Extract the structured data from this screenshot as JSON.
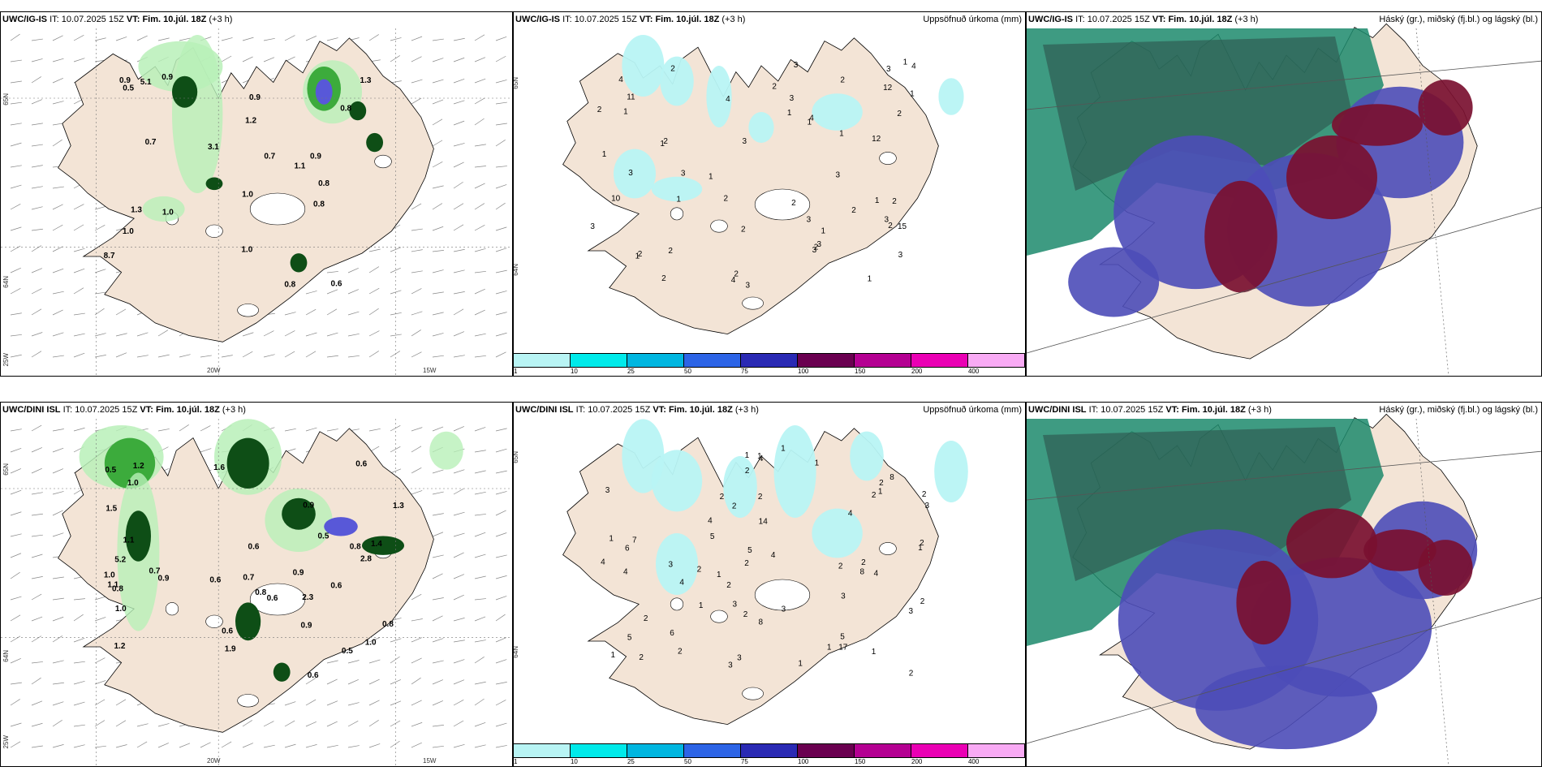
{
  "colors": {
    "land": "#f3e4d6",
    "ocean": "#ffffff",
    "precip_light": "#b8f0b8",
    "precip_mid": "#3cab3c",
    "precip_dark": "#0e4e16",
    "precip_heavy": "#5858d8",
    "accum_fill": "#b8f4f4",
    "cloud_high": "#7a1030",
    "cloud_mid": "#4d4db8",
    "cloud_low": "#1c8a6c",
    "cloud_low_dark": "#2f5c52"
  },
  "colorbar": {
    "labels": [
      "1",
      "10",
      "25",
      "50",
      "75",
      "100",
      "150",
      "200",
      "400"
    ],
    "colors": [
      "#b8f4f4",
      "#00eaea",
      "#00b6e0",
      "#2c64e6",
      "#2a2ab4",
      "#6a0050",
      "#b40092",
      "#ea00b4",
      "#f8aaf4"
    ]
  },
  "it_label": "IT:",
  "it_time": "10.07.2025 15Z",
  "vt_label": "VT: Fim. 10.júl. 18Z",
  "lead": "(+3 h)",
  "rows": [
    {
      "model": "UWC/IG-IS",
      "precip_title": "Uppsöfnuð úrkoma (mm)",
      "cloud_title": "Háský (gr.), miðský (fj.bl.) og lágský (bl.)",
      "axis_lat_1": "65N",
      "axis_lat_2": "64N",
      "axis_lon_1": "25W",
      "axis_lon_2": "20W",
      "axis_lon_3": "15W",
      "right_lat_1": "65N",
      "right_lat_2": "64N",
      "rate_labels": [
        "0.9",
        "1.0",
        "0.7",
        "1.2",
        "0.9",
        "1.3",
        "1.0",
        "0.8",
        "0.9",
        "0.8",
        "0.6",
        "0.8",
        "0.8",
        "1.0",
        "1.1",
        "0.7",
        "0.9",
        "0.5",
        "3.1",
        "1.0",
        "5.1",
        "8.7",
        "1.3"
      ],
      "accum_labels": [
        "1",
        "2",
        "3",
        "2",
        "1",
        "1",
        "4",
        "1",
        "3",
        "3",
        "2",
        "1",
        "2",
        "12",
        "11",
        "2",
        "15",
        "3",
        "10",
        "12",
        "3",
        "2",
        "4",
        "1",
        "1",
        "3",
        "2",
        "4",
        "4",
        "2",
        "2",
        "3",
        "1",
        "1",
        "3",
        "3",
        "3",
        "2",
        "1",
        "2",
        "2",
        "3",
        "2",
        "3",
        "3",
        "4",
        "2",
        "3",
        "2",
        "1",
        "2",
        "1",
        "1",
        "1",
        "2"
      ]
    },
    {
      "model": "UWC/DINI ISL",
      "precip_title": "Uppsöfnuð úrkoma (mm)",
      "cloud_title": "Háský (gr.), miðský (fj.bl.) og lágský (bl.)",
      "axis_lat_1": "65N",
      "axis_lat_2": "64N",
      "axis_lon_1": "25W",
      "axis_lon_2": "20W",
      "axis_lon_3": "15W",
      "right_lat_1": "65N",
      "right_lat_2": "64N",
      "rate_labels": [
        "0.6",
        "0.6",
        "1.1",
        "1.0",
        "0.6",
        "0.7",
        "0.9",
        "1.2",
        "0.6",
        "0.5",
        "0.9",
        "0.8",
        "1.4",
        "1.6",
        "1.0",
        "0.8",
        "0.9",
        "0.5",
        "0.6",
        "1.0",
        "0.8",
        "0.6",
        "1.1",
        "0.7",
        "0.8",
        "0.9",
        "0.5",
        "0.6",
        "1.0",
        "1.3",
        "1.5",
        "5.2",
        "2.3",
        "1.9",
        "1.2",
        "2.8"
      ],
      "accum_labels": [
        "1",
        "3",
        "5",
        "1",
        "4",
        "3",
        "2",
        "2",
        "1",
        "1",
        "2",
        "3",
        "3",
        "2",
        "1",
        "1",
        "4",
        "2",
        "1",
        "2",
        "3",
        "2",
        "2",
        "1",
        "3",
        "17",
        "1",
        "2",
        "2",
        "2",
        "4",
        "4",
        "5",
        "8",
        "8",
        "6",
        "4",
        "3",
        "14",
        "7",
        "8",
        "5",
        "2",
        "2",
        "4",
        "1",
        "3",
        "2",
        "4",
        "5",
        "1",
        "2",
        "6",
        "4",
        "2",
        "2",
        "1",
        "1",
        "2",
        "2",
        "3"
      ]
    }
  ]
}
